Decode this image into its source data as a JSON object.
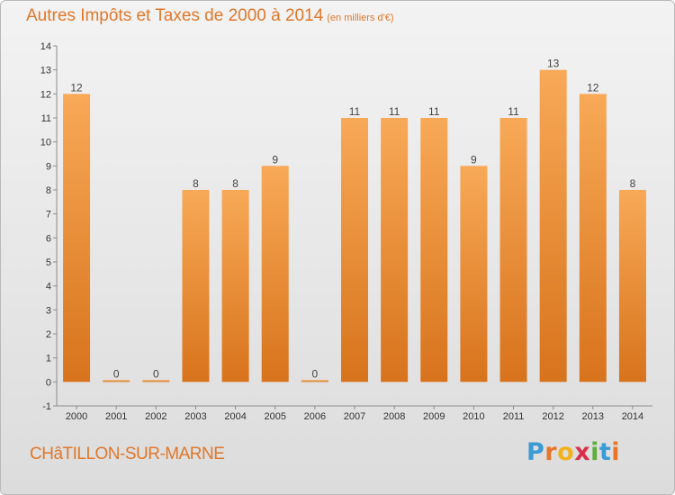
{
  "chart_data": {
    "type": "bar",
    "title": "Autres Impôts et Taxes de 2000 à 2014",
    "subtitle": "(en milliers d'€)",
    "categories": [
      "2000",
      "2001",
      "2002",
      "2003",
      "2004",
      "2005",
      "2006",
      "2007",
      "2008",
      "2009",
      "2010",
      "2011",
      "2012",
      "2013",
      "2014"
    ],
    "values": [
      12,
      0,
      0,
      8,
      8,
      9,
      0,
      11,
      11,
      11,
      9,
      11,
      13,
      12,
      8
    ],
    "value_labels": [
      "12",
      "0",
      "0",
      "8",
      "8",
      "9",
      "0",
      "11",
      "11",
      "11",
      "9",
      "11",
      "13",
      "12",
      "8"
    ],
    "yticks": [
      -1,
      0,
      1,
      2,
      3,
      4,
      5,
      6,
      7,
      8,
      9,
      10,
      11,
      12,
      13,
      14
    ],
    "ylim": [
      -1,
      14
    ],
    "bar_color": "#f0913a",
    "grid": false
  },
  "footer": {
    "location": "CHâTILLON-SUR-MARNE",
    "logo_letters": [
      "P",
      "r",
      "o",
      "x",
      "i",
      "t",
      "i"
    ],
    "logo_colors": [
      "#3a9bd5",
      "#e8752a",
      "#f2b21b",
      "#d8304a",
      "#5fae3c",
      "#3a9bd5",
      "#e8752a"
    ]
  }
}
